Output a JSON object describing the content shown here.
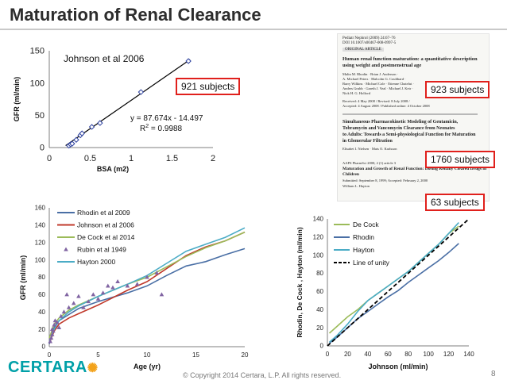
{
  "page": {
    "title": "Maturation of Renal Clearance",
    "copyright": "© Copyright 2014 Certara, L.P.   All rights reserved.",
    "page_number": "8",
    "logo_text": "CERTARA"
  },
  "labels": {
    "subjects_921": "921 subjects",
    "subjects_923": "923 subjects",
    "subjects_1760": "1760 subjects",
    "subjects_63": "63 subjects"
  },
  "papers": {
    "p1_header1": "Pediatr Nephrol (2009) 24:67–76",
    "p1_header2": "DOI 10.1007/s00467-008-0997-5",
    "p1_tag": "ORIGINAL ARTICLE",
    "p1_title1": "Human renal function maturation: a quantitative description",
    "p1_title2": "using weight and postmenstrual age",
    "p1_auth1": "Malin M. Rhodin · Brian J. Anderson ·",
    "p1_auth2": "A. Michael Peters · Malcolm G. Coulthard ·",
    "p1_auth3": "Barry Wilkins · Michael Cole · Etienne Chatelut ·",
    "p1_auth4": "Anders Grubb · Gareth J. Veal · Michael J. Keir ·",
    "p1_auth5": "Nick H. G. Holford",
    "p1_recv1": "Received: 4 May 2008 / Revised: 8 July 2008 /",
    "p1_recv2": "Accepted: 4 August 2008 / Published online: 4 October 2008",
    "p2_title1": "Simultaneous Pharmacokinetic Modeling of Gentamicin,",
    "p2_title2": "Tobramycin and Vancomycin Clearance from Neonates",
    "p2_title3": "to Adults: Towards a Semi-physiological Function for Maturation",
    "p2_title4": "in Glomerular Filtration",
    "p2_auth": "Elisabet I. Nielsen · Mats O. Karlsson",
    "p3_header": "AAPS PharmSci 2000; 2 (1) article 3",
    "p3_title1": "Maturation and Growth of Renal Function: Dosing Renally Cleared Drugs in",
    "p3_title2": "Children",
    "p3_sub": "Submitted: September 8, 1999; Accepted: February 2, 2000",
    "p3_auth": "William L. Hayton"
  },
  "chart_data": [
    {
      "type": "scatter",
      "title": "Johnson et al 2006",
      "xlabel": "BSA (m2)",
      "ylabel": "GFR (ml/min)",
      "xlim": [
        0,
        2
      ],
      "ylim": [
        0,
        150
      ],
      "xticks": [
        "0",
        "0.5",
        "1",
        "1.5",
        "2"
      ],
      "yticks": [
        "0",
        "50",
        "100",
        "150"
      ],
      "points": {
        "x": [
          0.24,
          0.26,
          0.28,
          0.33,
          0.38,
          0.4,
          0.52,
          0.62,
          1.12,
          1.7
        ],
        "y": [
          3,
          5,
          6,
          12,
          19,
          22,
          32,
          38,
          86,
          134
        ]
      },
      "regression": {
        "slope": 87.674,
        "intercept": -14.497,
        "x_range": [
          0.2,
          1.72
        ]
      },
      "equation": "y = 87.674x - 14.497",
      "r2_label": "R",
      "r2_sup": "2",
      "r2_value": " = 0.9988"
    },
    {
      "type": "line",
      "xlabel": "Age (yr)",
      "ylabel": "GFR (ml/min)",
      "xlim": [
        0,
        20
      ],
      "ylim": [
        0,
        160
      ],
      "xticks": [
        "0",
        "5",
        "10",
        "15",
        "20"
      ],
      "yticks": [
        "0",
        "20",
        "40",
        "60",
        "80",
        "100",
        "120",
        "140",
        "160"
      ],
      "legend": [
        "Rhodin et al 2009",
        "Johnson et al 2006",
        "De Cock et al 2014",
        "Rubin et al 1949",
        "Hayton 2000"
      ],
      "series": [
        {
          "name": "Rhodin et al 2009",
          "color": "#4a6fa5",
          "x": [
            0,
            0.5,
            1,
            2,
            3,
            5,
            8,
            10,
            12,
            14,
            16,
            18,
            20
          ],
          "y": [
            3,
            22,
            30,
            37,
            44,
            52,
            62,
            70,
            82,
            93,
            98,
            106,
            113
          ]
        },
        {
          "name": "Johnson et al 2006",
          "color": "#c0392b",
          "x": [
            0,
            0.5,
            1,
            2,
            3,
            5,
            8,
            10,
            12,
            14,
            16,
            18,
            20
          ],
          "y": [
            4,
            18,
            26,
            33,
            38,
            48,
            65,
            75,
            90,
            105,
            115,
            122,
            132
          ]
        },
        {
          "name": "De Cock et al 2014",
          "color": "#9bbb59",
          "x": [
            0,
            0.5,
            1,
            2,
            3,
            5,
            8,
            10,
            12,
            14,
            16,
            18,
            20
          ],
          "y": [
            10,
            26,
            33,
            42,
            48,
            58,
            72,
            80,
            92,
            104,
            114,
            122,
            132
          ]
        },
        {
          "name": "Hayton 2000",
          "color": "#4bacc6",
          "x": [
            0,
            0.5,
            1,
            2,
            3,
            5,
            8,
            10,
            12,
            14,
            16,
            18,
            20
          ],
          "y": [
            5,
            20,
            30,
            40,
            47,
            58,
            72,
            82,
            96,
            110,
            118,
            126,
            137
          ]
        }
      ],
      "scatter": {
        "name": "Rubin et al 1949",
        "color": "#8064a2",
        "x": [
          0.1,
          0.2,
          0.3,
          0.3,
          0.4,
          0.5,
          0.6,
          0.8,
          1.0,
          1.2,
          1.5,
          1.8,
          2.0,
          2.5,
          3.0,
          3.5,
          4.0,
          4.5,
          5.0,
          5.5,
          6.0,
          6.5,
          7.0,
          8.0,
          9.0,
          10.0,
          11.0,
          11.5
        ],
        "y": [
          6,
          10,
          14,
          20,
          18,
          25,
          30,
          28,
          22,
          35,
          40,
          60,
          45,
          50,
          58,
          45,
          52,
          60,
          55,
          62,
          70,
          68,
          75,
          70,
          72,
          80,
          85,
          60
        ]
      }
    },
    {
      "type": "line",
      "xlabel": "Johnson (ml/min)",
      "ylabel": "Rhodin, De Cock , Hayton (ml/min)",
      "xlim": [
        0,
        140
      ],
      "ylim": [
        0,
        140
      ],
      "xticks": [
        "0",
        "20",
        "40",
        "60",
        "80",
        "100",
        "120",
        "140"
      ],
      "yticks": [
        "0",
        "20",
        "40",
        "60",
        "80",
        "100",
        "120",
        "140"
      ],
      "legend": [
        "De Cock",
        "Rhodin",
        "Hayton",
        "Line of unity"
      ],
      "series": [
        {
          "name": "De Cock",
          "color": "#9bbb59",
          "x": [
            2,
            10,
            20,
            30,
            40,
            50,
            60,
            70,
            80,
            90,
            100,
            110,
            120,
            130
          ],
          "y": [
            14,
            22,
            32,
            40,
            50,
            58,
            66,
            74,
            82,
            92,
            102,
            112,
            124,
            132
          ]
        },
        {
          "name": "Rhodin",
          "color": "#4a6fa5",
          "x": [
            2,
            10,
            20,
            30,
            40,
            50,
            60,
            70,
            80,
            90,
            100,
            110,
            120,
            130
          ],
          "y": [
            3,
            10,
            20,
            30,
            38,
            46,
            54,
            61,
            70,
            78,
            86,
            94,
            103,
            113
          ]
        },
        {
          "name": "Hayton",
          "color": "#4bacc6",
          "x": [
            2,
            10,
            20,
            30,
            40,
            50,
            60,
            70,
            80,
            90,
            100,
            110,
            120,
            130
          ],
          "y": [
            4,
            12,
            24,
            38,
            50,
            58,
            66,
            74,
            82,
            92,
            102,
            112,
            124,
            136
          ]
        },
        {
          "name": "Line of unity",
          "color": "#000000",
          "dashed": true,
          "x": [
            0,
            140
          ],
          "y": [
            0,
            140
          ]
        }
      ]
    }
  ]
}
